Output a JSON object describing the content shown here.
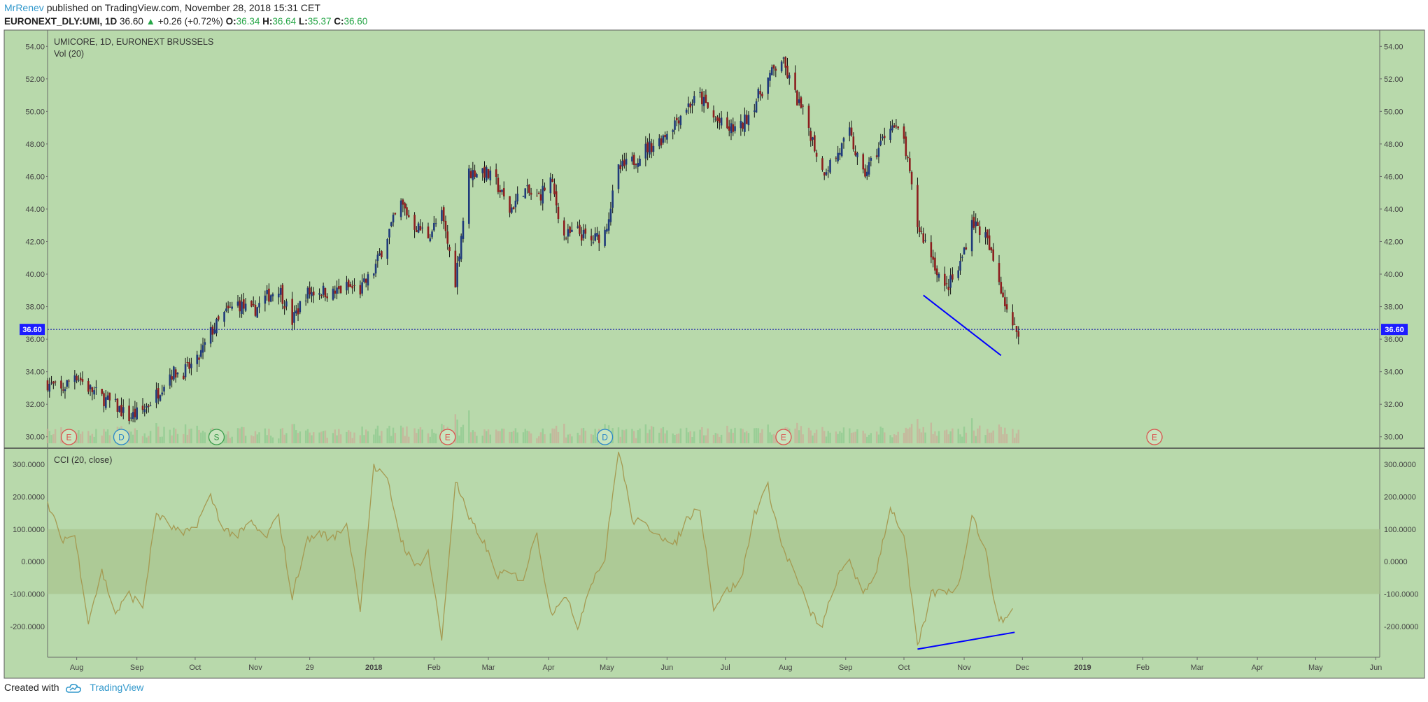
{
  "header": {
    "author": "MrRenev",
    "published": "published on TradingView.com, November 28, 2018 15:31 CET",
    "symbol": "EURONEXT_DLY:UMI, 1D",
    "last": "36.60",
    "up_arrow": "▲",
    "change": "+0.26 (+0.72%)",
    "o_label": "O:",
    "o_val": "36.34",
    "h_label": "H:",
    "h_val": "36.64",
    "l_label": "L:",
    "l_val": "35.37",
    "c_label": "C:",
    "c_val": "36.60"
  },
  "footer": {
    "created_with": "Created with",
    "brand": "TradingView",
    "logo_icon": "tradingview-cloud-icon"
  },
  "colors": {
    "background": "#b8d9ab",
    "up": "#1f3a7a",
    "down": "#8b1e1e",
    "cci": "#a59a52",
    "band": "#b5c99a",
    "trendline": "#0000ff",
    "price_line": "#0000aa"
  },
  "chart_data": [
    {
      "type": "candlestick",
      "title": "UMICORE, 1D, EURONEXT BRUSSELS",
      "subtitle": "Vol (20)",
      "x_tick_labels": [
        "Aug",
        "Sep",
        "Oct",
        "Nov",
        "29",
        "2018",
        "Feb",
        "Mar",
        "Apr",
        "May",
        "Jun",
        "Jul",
        "Aug",
        "Sep",
        "Oct",
        "Nov",
        "Dec",
        "2019",
        "Feb",
        "Mar",
        "Apr",
        "May",
        "Jun"
      ],
      "y_tick_labels": [
        "54.00",
        "52.00",
        "50.00",
        "48.00",
        "46.00",
        "44.00",
        "42.00",
        "40.00",
        "38.00",
        "36.00",
        "34.00",
        "32.00",
        "30.00"
      ],
      "ylim": [
        29.3,
        55.0
      ],
      "x_range": [
        "2017-07-17",
        "2019-06-03"
      ],
      "last_price_label": "36.60",
      "last_price": 36.6,
      "close_path": [
        [
          "2017-07-17",
          33.3
        ],
        [
          "2017-07-24",
          32.8
        ],
        [
          "2017-07-31",
          33.9
        ],
        [
          "2017-08-07",
          33.0
        ],
        [
          "2017-08-14",
          32.4
        ],
        [
          "2017-08-21",
          31.9
        ],
        [
          "2017-08-28",
          31.2
        ],
        [
          "2017-09-04",
          31.6
        ],
        [
          "2017-09-11",
          32.6
        ],
        [
          "2017-09-18",
          33.9
        ],
        [
          "2017-09-25",
          34.0
        ],
        [
          "2017-10-02",
          34.6
        ],
        [
          "2017-10-09",
          36.4
        ],
        [
          "2017-10-16",
          37.5
        ],
        [
          "2017-10-23",
          38.2
        ],
        [
          "2017-10-30",
          37.6
        ],
        [
          "2017-11-06",
          38.5
        ],
        [
          "2017-11-13",
          39.2
        ],
        [
          "2017-11-20",
          37.1
        ],
        [
          "2017-11-27",
          38.8
        ],
        [
          "2017-12-04",
          39.0
        ],
        [
          "2017-12-11",
          38.8
        ],
        [
          "2017-12-18",
          39.2
        ],
        [
          "2017-12-25",
          39.0
        ],
        [
          "2018-01-01",
          40.2
        ],
        [
          "2018-01-08",
          42.4
        ],
        [
          "2018-01-15",
          44.3
        ],
        [
          "2018-01-22",
          43.0
        ],
        [
          "2018-01-29",
          42.4
        ],
        [
          "2018-02-05",
          43.6
        ],
        [
          "2018-02-12",
          39.6
        ],
        [
          "2018-02-19",
          46.2
        ],
        [
          "2018-02-26",
          46.4
        ],
        [
          "2018-03-05",
          45.6
        ],
        [
          "2018-03-12",
          43.9
        ],
        [
          "2018-03-19",
          45.2
        ],
        [
          "2018-03-26",
          44.6
        ],
        [
          "2018-04-02",
          45.8
        ],
        [
          "2018-04-09",
          42.3
        ],
        [
          "2018-04-16",
          42.6
        ],
        [
          "2018-04-23",
          42.0
        ],
        [
          "2018-04-30",
          42.6
        ],
        [
          "2018-05-07",
          46.4
        ],
        [
          "2018-05-14",
          46.9
        ],
        [
          "2018-05-21",
          47.7
        ],
        [
          "2018-05-28",
          48.2
        ],
        [
          "2018-06-04",
          49.2
        ],
        [
          "2018-06-11",
          50.3
        ],
        [
          "2018-06-18",
          50.9
        ],
        [
          "2018-06-25",
          49.6
        ],
        [
          "2018-07-02",
          48.9
        ],
        [
          "2018-07-09",
          49.0
        ],
        [
          "2018-07-16",
          50.5
        ],
        [
          "2018-07-23",
          52.0
        ],
        [
          "2018-07-30",
          53.2
        ],
        [
          "2018-08-06",
          51.0
        ],
        [
          "2018-08-13",
          49.0
        ],
        [
          "2018-08-20",
          46.3
        ],
        [
          "2018-08-27",
          47.2
        ],
        [
          "2018-09-03",
          48.6
        ],
        [
          "2018-09-10",
          46.0
        ],
        [
          "2018-09-17",
          47.5
        ],
        [
          "2018-09-24",
          49.3
        ],
        [
          "2018-10-01",
          48.2
        ],
        [
          "2018-10-08",
          43.0
        ],
        [
          "2018-10-15",
          41.2
        ],
        [
          "2018-10-22",
          39.0
        ],
        [
          "2018-10-29",
          40.2
        ],
        [
          "2018-11-05",
          43.3
        ],
        [
          "2018-11-12",
          42.3
        ],
        [
          "2018-11-19",
          39.6
        ],
        [
          "2018-11-26",
          36.6
        ]
      ],
      "earnings_markers": [
        {
          "label": "E",
          "date": "2017-07-28"
        },
        {
          "label": "D",
          "date": "2017-08-24"
        },
        {
          "label": "S",
          "date": "2017-10-12"
        },
        {
          "label": "E",
          "date": "2018-02-08"
        },
        {
          "label": "D",
          "date": "2018-04-30"
        },
        {
          "label": "E",
          "date": "2018-07-31"
        },
        {
          "label": "E",
          "date": "2019-02-07"
        }
      ],
      "trendline": [
        [
          "2018-10-11",
          38.7
        ],
        [
          "2018-11-20",
          35.0
        ]
      ]
    },
    {
      "type": "line",
      "title": "CCI (20, close)",
      "y_tick_labels": [
        "300.0000",
        "200.0000",
        "100.0000",
        "0.0000",
        "-100.0000",
        "-200.0000"
      ],
      "ylim": [
        -295,
        350
      ],
      "band": [
        -100,
        100
      ],
      "series": [
        {
          "values": [
            [
              "2017-07-17",
              180
            ],
            [
              "2017-07-24",
              70
            ],
            [
              "2017-07-31",
              80
            ],
            [
              "2017-08-07",
              -180
            ],
            [
              "2017-08-14",
              -30
            ],
            [
              "2017-08-21",
              -160
            ],
            [
              "2017-08-28",
              -100
            ],
            [
              "2017-09-04",
              -140
            ],
            [
              "2017-09-11",
              150
            ],
            [
              "2017-09-18",
              110
            ],
            [
              "2017-09-25",
              80
            ],
            [
              "2017-10-02",
              120
            ],
            [
              "2017-10-09",
              200
            ],
            [
              "2017-10-16",
              100
            ],
            [
              "2017-10-23",
              80
            ],
            [
              "2017-10-30",
              120
            ],
            [
              "2017-11-06",
              70
            ],
            [
              "2017-11-13",
              140
            ],
            [
              "2017-11-20",
              -110
            ],
            [
              "2017-11-27",
              60
            ],
            [
              "2017-12-04",
              90
            ],
            [
              "2017-12-11",
              70
            ],
            [
              "2017-12-18",
              120
            ],
            [
              "2017-12-25",
              -140
            ],
            [
              "2018-01-01",
              290
            ],
            [
              "2018-01-08",
              250
            ],
            [
              "2018-01-15",
              70
            ],
            [
              "2018-01-22",
              -20
            ],
            [
              "2018-01-29",
              30
            ],
            [
              "2018-02-05",
              -240
            ],
            [
              "2018-02-12",
              250
            ],
            [
              "2018-02-19",
              130
            ],
            [
              "2018-02-26",
              70
            ],
            [
              "2018-03-05",
              -40
            ],
            [
              "2018-03-12",
              -40
            ],
            [
              "2018-03-19",
              -50
            ],
            [
              "2018-03-26",
              90
            ],
            [
              "2018-04-02",
              -160
            ],
            [
              "2018-04-09",
              -100
            ],
            [
              "2018-04-16",
              -200
            ],
            [
              "2018-04-23",
              -60
            ],
            [
              "2018-04-30",
              10
            ],
            [
              "2018-05-07",
              350
            ],
            [
              "2018-05-14",
              130
            ],
            [
              "2018-05-21",
              110
            ],
            [
              "2018-05-28",
              90
            ],
            [
              "2018-06-04",
              40
            ],
            [
              "2018-06-11",
              130
            ],
            [
              "2018-06-18",
              170
            ],
            [
              "2018-06-25",
              -140
            ],
            [
              "2018-07-02",
              -90
            ],
            [
              "2018-07-09",
              -60
            ],
            [
              "2018-07-16",
              150
            ],
            [
              "2018-07-23",
              230
            ],
            [
              "2018-07-30",
              50
            ],
            [
              "2018-08-06",
              -40
            ],
            [
              "2018-08-13",
              -150
            ],
            [
              "2018-08-20",
              -200
            ],
            [
              "2018-08-27",
              -60
            ],
            [
              "2018-09-03",
              10
            ],
            [
              "2018-09-10",
              -110
            ],
            [
              "2018-09-17",
              -20
            ],
            [
              "2018-09-24",
              170
            ],
            [
              "2018-10-01",
              80
            ],
            [
              "2018-10-08",
              -270
            ],
            [
              "2018-10-15",
              -100
            ],
            [
              "2018-10-22",
              -90
            ],
            [
              "2018-10-29",
              -80
            ],
            [
              "2018-11-05",
              150
            ],
            [
              "2018-11-12",
              30
            ],
            [
              "2018-11-19",
              -190
            ],
            [
              "2018-11-26",
              -150
            ]
          ]
        }
      ],
      "trendline": [
        [
          "2018-10-08",
          -270
        ],
        [
          "2018-11-27",
          -218
        ]
      ]
    }
  ]
}
